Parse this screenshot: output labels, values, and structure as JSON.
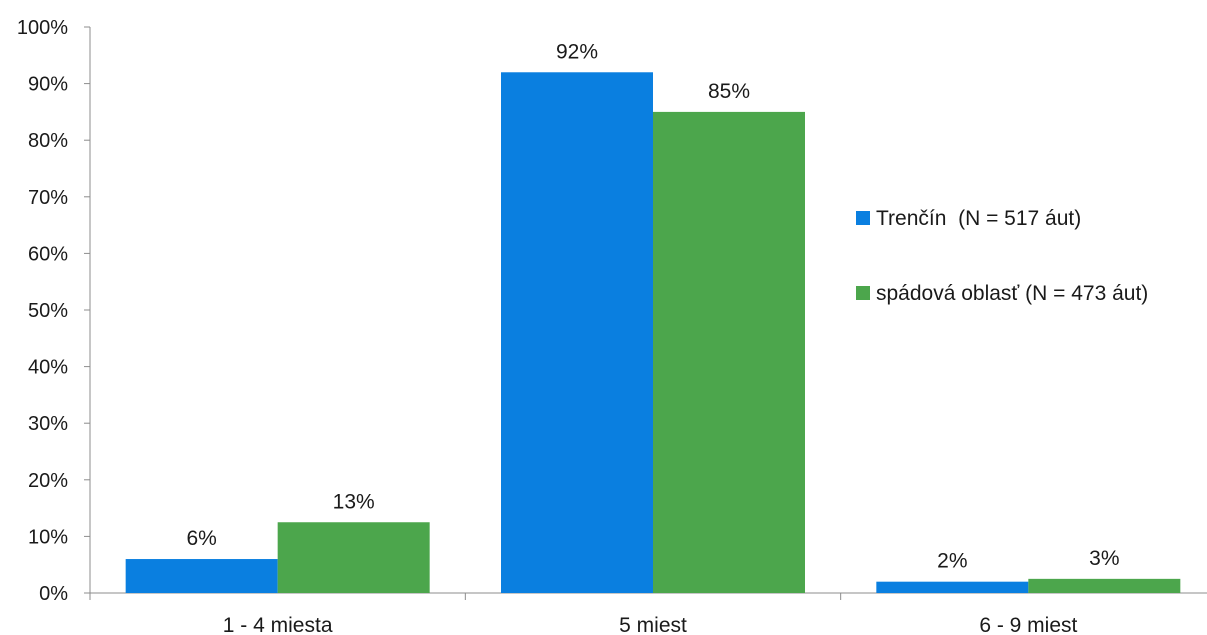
{
  "chart_data": {
    "type": "bar",
    "categories": [
      "1 - 4 miesta",
      "5 miest",
      "6 - 9 miest"
    ],
    "series": [
      {
        "name": "Trenčín  (N = 517 áut)",
        "values": [
          6,
          92,
          2
        ],
        "labels": [
          "6%",
          "92%",
          "2%"
        ],
        "color": "#0a7fe0"
      },
      {
        "name": "spádová oblasť (N = 473 áut)",
        "values": [
          12.5,
          85,
          2.5
        ],
        "labels": [
          "13%",
          "85%",
          "3%"
        ],
        "color": "#4ca64c"
      }
    ],
    "yticks": [
      "0%",
      "10%",
      "20%",
      "30%",
      "40%",
      "50%",
      "60%",
      "70%",
      "80%",
      "90%",
      "100%"
    ],
    "ylim": [
      0,
      100
    ],
    "grid": false,
    "legend_position": "right"
  }
}
